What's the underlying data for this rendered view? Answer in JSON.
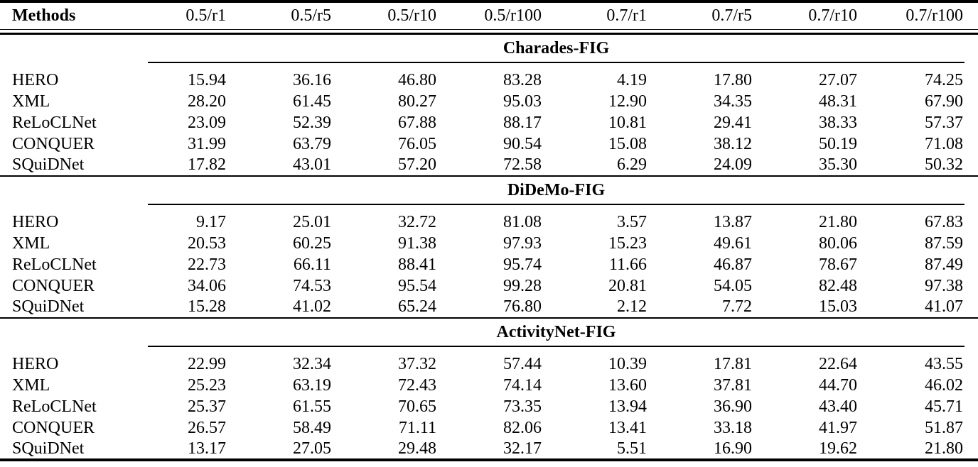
{
  "table": {
    "columns": [
      "Methods",
      "0.5/r1",
      "0.5/r5",
      "0.5/r10",
      "0.5/r100",
      "0.7/r1",
      "0.7/r5",
      "0.7/r10",
      "0.7/r100"
    ],
    "sections": [
      {
        "title": "Charades-FIG",
        "rows": [
          {
            "method": "HERO",
            "values": [
              "15.94",
              "36.16",
              "46.80",
              "83.28",
              "4.19",
              "17.80",
              "27.07",
              "74.25"
            ]
          },
          {
            "method": "XML",
            "values": [
              "28.20",
              "61.45",
              "80.27",
              "95.03",
              "12.90",
              "34.35",
              "48.31",
              "67.90"
            ]
          },
          {
            "method": "ReLoCLNet",
            "values": [
              "23.09",
              "52.39",
              "67.88",
              "88.17",
              "10.81",
              "29.41",
              "38.33",
              "57.37"
            ]
          },
          {
            "method": "CONQUER",
            "values": [
              "31.99",
              "63.79",
              "76.05",
              "90.54",
              "15.08",
              "38.12",
              "50.19",
              "71.08"
            ]
          },
          {
            "method": "SQuiDNet",
            "values": [
              "17.82",
              "43.01",
              "57.20",
              "72.58",
              "6.29",
              "24.09",
              "35.30",
              "50.32"
            ]
          }
        ]
      },
      {
        "title": "DiDeMo-FIG",
        "rows": [
          {
            "method": "HERO",
            "values": [
              "9.17",
              "25.01",
              "32.72",
              "81.08",
              "3.57",
              "13.87",
              "21.80",
              "67.83"
            ]
          },
          {
            "method": "XML",
            "values": [
              "20.53",
              "60.25",
              "91.38",
              "97.93",
              "15.23",
              "49.61",
              "80.06",
              "87.59"
            ]
          },
          {
            "method": "ReLoCLNet",
            "values": [
              "22.73",
              "66.11",
              "88.41",
              "95.74",
              "11.66",
              "46.87",
              "78.67",
              "87.49"
            ]
          },
          {
            "method": "CONQUER",
            "values": [
              "34.06",
              "74.53",
              "95.54",
              "99.28",
              "20.81",
              "54.05",
              "82.48",
              "97.38"
            ]
          },
          {
            "method": "SQuiDNet",
            "values": [
              "15.28",
              "41.02",
              "65.24",
              "76.80",
              "2.12",
              "7.72",
              "15.03",
              "41.07"
            ]
          }
        ]
      },
      {
        "title": "ActivityNet-FIG",
        "rows": [
          {
            "method": "HERO",
            "values": [
              "22.99",
              "32.34",
              "37.32",
              "57.44",
              "10.39",
              "17.81",
              "22.64",
              "43.55"
            ]
          },
          {
            "method": "XML",
            "values": [
              "25.23",
              "63.19",
              "72.43",
              "74.14",
              "13.60",
              "37.81",
              "44.70",
              "46.02"
            ]
          },
          {
            "method": "ReLoCLNet",
            "values": [
              "25.37",
              "61.55",
              "70.65",
              "73.35",
              "13.94",
              "36.90",
              "43.40",
              "45.71"
            ]
          },
          {
            "method": "CONQUER",
            "values": [
              "26.57",
              "58.49",
              "71.11",
              "82.06",
              "13.41",
              "33.18",
              "41.97",
              "51.87"
            ]
          },
          {
            "method": "SQuiDNet",
            "values": [
              "13.17",
              "27.05",
              "29.48",
              "32.17",
              "5.51",
              "16.90",
              "19.62",
              "21.80"
            ]
          }
        ]
      }
    ]
  }
}
